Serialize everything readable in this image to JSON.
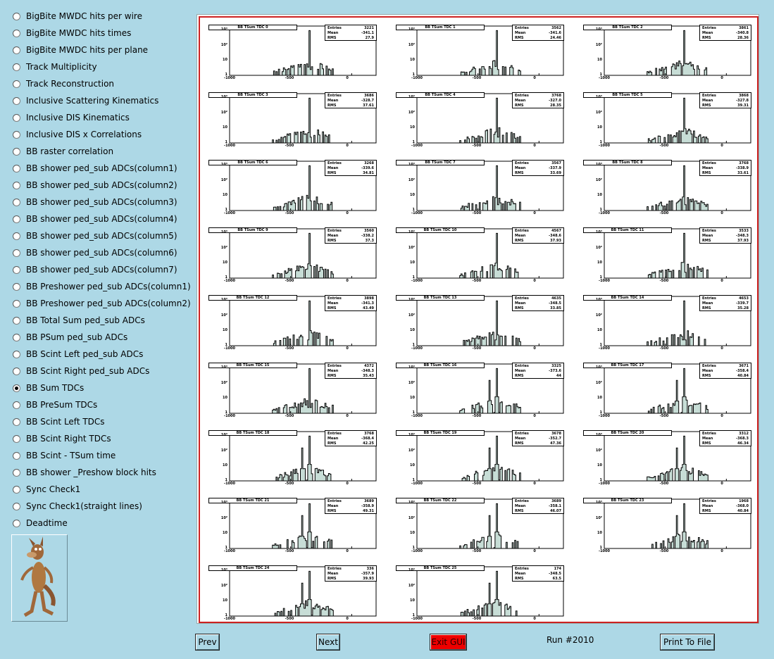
{
  "sidebar": {
    "items": [
      {
        "label": "BigBite MWDC hits per wire",
        "checked": false
      },
      {
        "label": "BigBite MWDC hits times",
        "checked": false
      },
      {
        "label": "BigBite MWDC hits per plane",
        "checked": false
      },
      {
        "label": "Track Multiplicity",
        "checked": false
      },
      {
        "label": "Track Reconstruction",
        "checked": false
      },
      {
        "label": "Inclusive Scattering Kinematics",
        "checked": false
      },
      {
        "label": "Inclusive DIS Kinematics",
        "checked": false
      },
      {
        "label": "Inclusive DIS x Correlations",
        "checked": false
      },
      {
        "label": "BB raster correlation",
        "checked": false
      },
      {
        "label": "BB shower ped_sub ADCs(column1)",
        "checked": false
      },
      {
        "label": "BB shower ped_sub ADCs(column2)",
        "checked": false
      },
      {
        "label": "BB shower ped_sub ADCs(column3)",
        "checked": false
      },
      {
        "label": "BB shower ped_sub ADCs(column4)",
        "checked": false
      },
      {
        "label": "BB shower ped_sub ADCs(column5)",
        "checked": false
      },
      {
        "label": "BB shower ped_sub ADCs(column6)",
        "checked": false
      },
      {
        "label": "BB shower ped_sub ADCs(column7)",
        "checked": false
      },
      {
        "label": "BB Preshower ped_sub ADCs(column1)",
        "checked": false
      },
      {
        "label": "BB Preshower ped_sub ADCs(column2)",
        "checked": false
      },
      {
        "label": "BB Total Sum ped_sub ADCs",
        "checked": false
      },
      {
        "label": "BB PSum ped_sub ADCs",
        "checked": false
      },
      {
        "label": "BB Scint Left ped_sub ADCs",
        "checked": false
      },
      {
        "label": "BB Scint Right ped_sub ADCs",
        "checked": false
      },
      {
        "label": "BB Sum TDCs",
        "checked": true
      },
      {
        "label": "BB PreSum TDCs",
        "checked": false
      },
      {
        "label": "BB Scint Left TDCs",
        "checked": false
      },
      {
        "label": "BB Scint Right TDCs",
        "checked": false
      },
      {
        "label": "BB Scint - TSum time",
        "checked": false
      },
      {
        "label": "BB shower _Preshow block hits",
        "checked": false
      },
      {
        "label": "Sync Check1",
        "checked": false
      },
      {
        "label": "Sync Check1(straight lines)",
        "checked": false
      },
      {
        "label": "Deadtime",
        "checked": false
      }
    ],
    "mascot_icon": "coyote-mascot-icon"
  },
  "buttons": {
    "prev": "Prev",
    "next": "Next",
    "exit": "Exit GUI",
    "print": "Print To File"
  },
  "run_label": "Run #2010",
  "colors": {
    "background": "#add8e6",
    "canvas_border": "#cc2222",
    "exit_button": "#ee0000",
    "hist_fill": "#5f9e8a"
  },
  "chart_data": {
    "type": "bar",
    "y_scale": "log",
    "y_ticks": [
      "10³",
      "10²",
      "10",
      "1"
    ],
    "x_ticks": [
      "-1000",
      "-500",
      "0"
    ],
    "xlim": [
      -1000,
      200
    ],
    "stats_keys": [
      "Entries",
      "Mean",
      "RMS"
    ],
    "histograms": [
      {
        "title": "BB TSum TDC 0",
        "entries": "3221",
        "mean": "-341.1",
        "rms": "27.9",
        "peaks": [
          -345
        ]
      },
      {
        "title": "BB TSum TDC 1",
        "entries": "3562",
        "mean": "-341.6",
        "rms": "24.46",
        "peaks": [
          -345
        ]
      },
      {
        "title": "BB TSum TDC 2",
        "entries": "3861",
        "mean": "-340.8",
        "rms": "28.36",
        "peaks": [
          -345
        ]
      },
      {
        "title": "BB TSum TDC 3",
        "entries": "3686",
        "mean": "-328.7",
        "rms": "37.61",
        "peaks": [
          -345
        ]
      },
      {
        "title": "BB TSum TDC 4",
        "entries": "3768",
        "mean": "-327.0",
        "rms": "28.35",
        "peaks": [
          -345
        ]
      },
      {
        "title": "BB TSum TDC 5",
        "entries": "3868",
        "mean": "-327.8",
        "rms": "39.31",
        "peaks": [
          -345
        ]
      },
      {
        "title": "BB TSum TDC 6",
        "entries": "3268",
        "mean": "-339.6",
        "rms": "34.81",
        "peaks": [
          -345
        ]
      },
      {
        "title": "BB TSum TDC 7",
        "entries": "3567",
        "mean": "-337.9",
        "rms": "33.69",
        "peaks": [
          -345
        ]
      },
      {
        "title": "BB TSum TDC 8",
        "entries": "3768",
        "mean": "-338.9",
        "rms": "33.61",
        "peaks": [
          -345
        ]
      },
      {
        "title": "BB TSum TDC 9",
        "entries": "3560",
        "mean": "-338.2",
        "rms": "37.3",
        "peaks": [
          -345
        ]
      },
      {
        "title": "BB TSum TDC 10",
        "entries": "4567",
        "mean": "-348.6",
        "rms": "37.93",
        "peaks": [
          -345
        ]
      },
      {
        "title": "BB TSum TDC 11",
        "entries": "3533",
        "mean": "-348.3",
        "rms": "37.93",
        "peaks": [
          -345
        ]
      },
      {
        "title": "BB TSum TDC 12",
        "entries": "3898",
        "mean": "-341.3",
        "rms": "43.49",
        "peaks": [
          -345
        ]
      },
      {
        "title": "BB TSum TDC 13",
        "entries": "4635",
        "mean": "-348.5",
        "rms": "33.85",
        "peaks": [
          -345
        ]
      },
      {
        "title": "BB TSum TDC 14",
        "entries": "4653",
        "mean": "-339.7",
        "rms": "35.28",
        "peaks": [
          -345
        ]
      },
      {
        "title": "BB TSum TDC 15",
        "entries": "4372",
        "mean": "-348.3",
        "rms": "35.43",
        "peaks": [
          -345
        ]
      },
      {
        "title": "BB TSum TDC 16",
        "entries": "3325",
        "mean": "-373.6",
        "rms": "44",
        "peaks": [
          -405,
          -345
        ]
      },
      {
        "title": "BB TSum TDC 17",
        "entries": "3671",
        "mean": "-358.4",
        "rms": "40.84",
        "peaks": [
          -405,
          -345
        ]
      },
      {
        "title": "BB TSum TDC 18",
        "entries": "3768",
        "mean": "-368.4",
        "rms": "42.25",
        "peaks": [
          -405,
          -345
        ]
      },
      {
        "title": "BB TSum TDC 19",
        "entries": "3678",
        "mean": "-352.7",
        "rms": "47.36",
        "peaks": [
          -405,
          -345
        ]
      },
      {
        "title": "BB TSum TDC 20",
        "entries": "3312",
        "mean": "-368.3",
        "rms": "46.34",
        "peaks": [
          -405,
          -345
        ]
      },
      {
        "title": "BB TSum TDC 21",
        "entries": "3689",
        "mean": "-358.9",
        "rms": "49.31",
        "peaks": [
          -405,
          -345
        ]
      },
      {
        "title": "BB TSum TDC 22",
        "entries": "3689",
        "mean": "-358.1",
        "rms": "46.07",
        "peaks": [
          -405,
          -345
        ]
      },
      {
        "title": "BB TSum TDC 23",
        "entries": "1968",
        "mean": "-368.0",
        "rms": "40.84",
        "peaks": [
          -405,
          -345
        ]
      },
      {
        "title": "BB TSum TDC 24",
        "entries": "336",
        "mean": "-357.9",
        "rms": "39.93",
        "peaks": [
          -405,
          -345
        ]
      },
      {
        "title": "BB TSum TDC 25",
        "entries": "174",
        "mean": "-348.5",
        "rms": "63.5",
        "peaks": [
          -405,
          -345
        ]
      }
    ]
  }
}
